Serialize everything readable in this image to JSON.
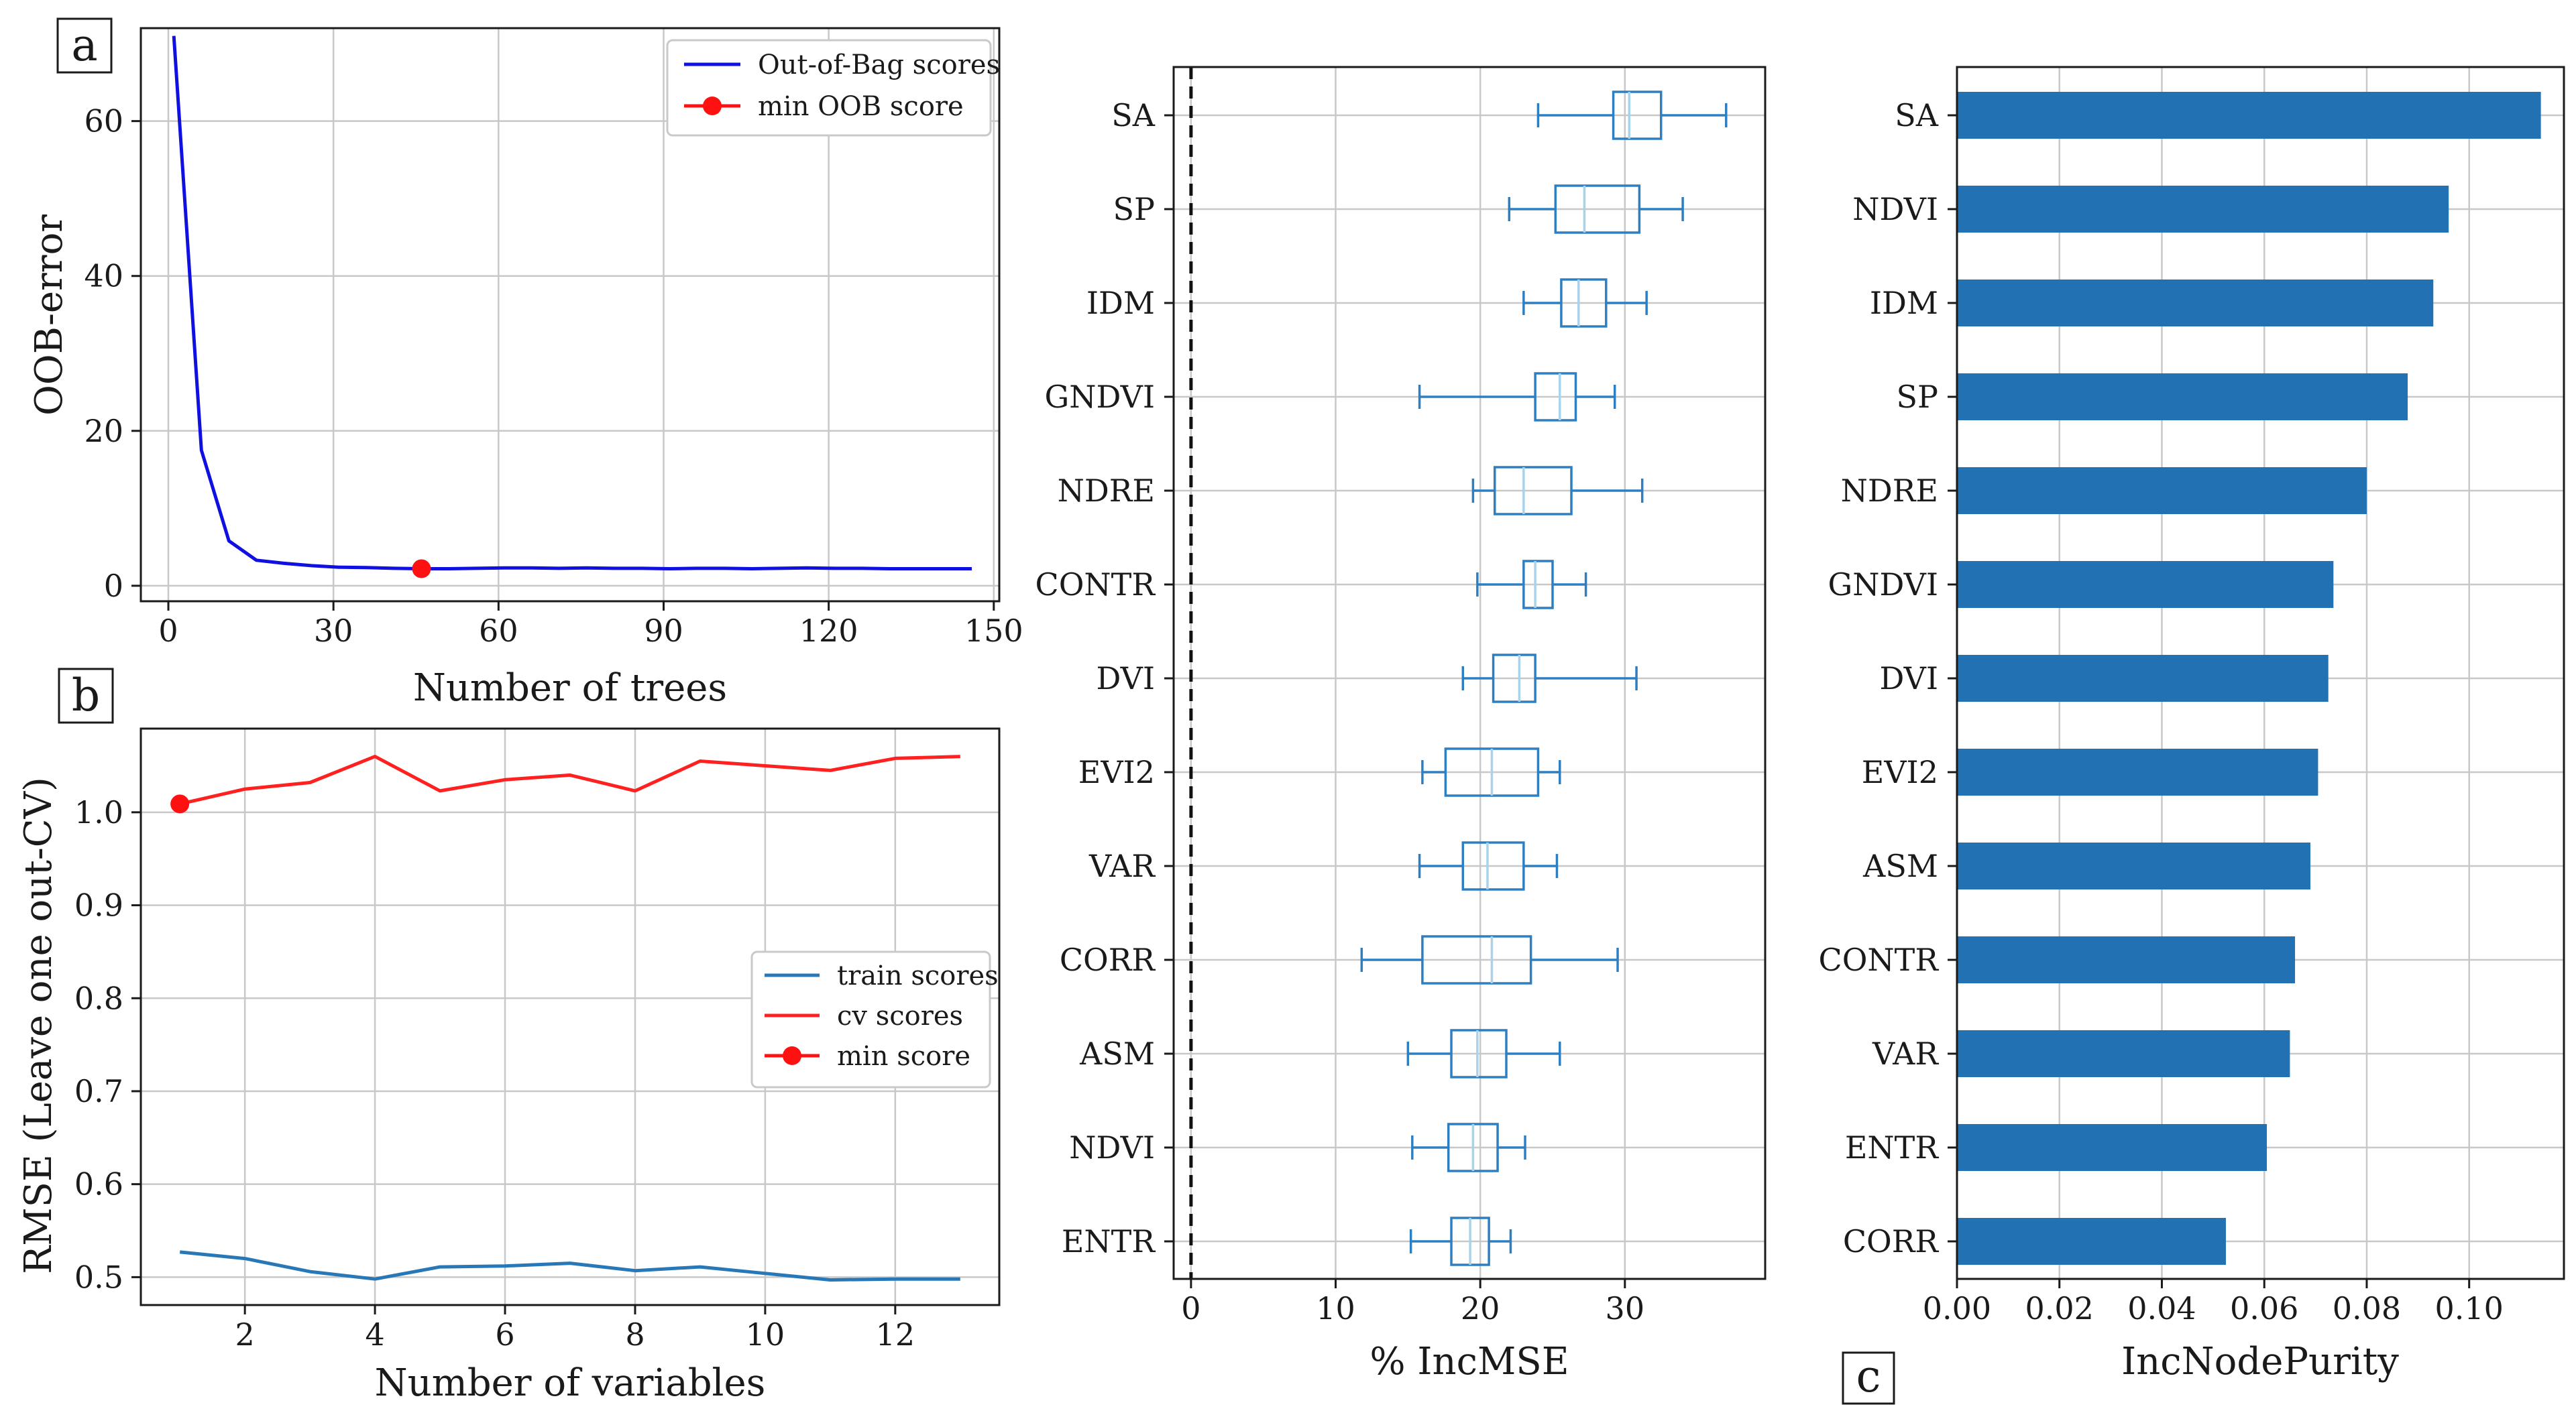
{
  "colors": {
    "oob_line": "#1010e0",
    "min_marker": "#ff1111",
    "cv_line": "#ff2020",
    "train_line": "#2878b8",
    "box": "#2e7fc2",
    "median": "#a9d2ec",
    "bar": "#2271b3",
    "grid": "#c8c8c8"
  },
  "panel_labels": {
    "a": "a",
    "b": "b",
    "c": "c"
  },
  "chart_data": [
    {
      "id": "a",
      "type": "line",
      "title": "",
      "xlabel": "Number of trees",
      "ylabel": "OOB-error",
      "xlim": [
        -5,
        151
      ],
      "ylim": [
        -2,
        72
      ],
      "xticks": [
        0,
        30,
        60,
        90,
        120,
        150
      ],
      "yticks": [
        0,
        20,
        40,
        60
      ],
      "grid": true,
      "legend_position": "top-right",
      "series": [
        {
          "name": "Out-of-Bag scores",
          "x": [
            1,
            6,
            11,
            16,
            21,
            26,
            31,
            36,
            41,
            46,
            51,
            56,
            61,
            66,
            71,
            76,
            81,
            86,
            91,
            96,
            101,
            106,
            111,
            116,
            121,
            126,
            131,
            136,
            141,
            146
          ],
          "y": [
            71,
            17.5,
            5.8,
            3.3,
            2.9,
            2.6,
            2.4,
            2.35,
            2.25,
            2.2,
            2.2,
            2.25,
            2.3,
            2.3,
            2.25,
            2.3,
            2.25,
            2.25,
            2.2,
            2.25,
            2.25,
            2.2,
            2.25,
            2.3,
            2.25,
            2.25,
            2.2,
            2.2,
            2.2,
            2.2
          ]
        }
      ],
      "marker": {
        "name": "min OOB score",
        "x": 46,
        "y": 2.2
      }
    },
    {
      "id": "b",
      "type": "line",
      "title": "",
      "xlabel": "Number of variables",
      "ylabel": "RMSE (Leave one out-CV)",
      "xlim": [
        0.4,
        13.6
      ],
      "ylim": [
        0.47,
        1.09
      ],
      "xticks": [
        2,
        4,
        6,
        8,
        10,
        12
      ],
      "yticks": [
        0.5,
        0.6,
        0.7,
        0.8,
        0.9,
        1.0
      ],
      "ytick_labels": [
        "0.5",
        "0.6",
        "0.7",
        "0.8",
        "0.9",
        "1.0"
      ],
      "grid": true,
      "legend_position": "center-right",
      "series": [
        {
          "name": "train scores",
          "x": [
            1,
            2,
            3,
            4,
            5,
            6,
            7,
            8,
            9,
            10,
            11,
            12,
            13
          ],
          "y": [
            0.527,
            0.52,
            0.506,
            0.498,
            0.511,
            0.512,
            0.515,
            0.507,
            0.511,
            0.504,
            0.497,
            0.498,
            0.498
          ]
        },
        {
          "name": "cv scores",
          "x": [
            1,
            2,
            3,
            4,
            5,
            6,
            7,
            8,
            9,
            10,
            11,
            12,
            13
          ],
          "y": [
            1.009,
            1.025,
            1.032,
            1.06,
            1.023,
            1.035,
            1.04,
            1.023,
            1.055,
            1.05,
            1.045,
            1.058,
            1.06
          ]
        }
      ],
      "marker": {
        "name": "min score",
        "x": 1,
        "y": 1.009
      }
    },
    {
      "id": "box",
      "type": "box",
      "title": "",
      "xlabel": "% IncMSE",
      "ylabel": "",
      "xlim": [
        -1.2,
        39.7
      ],
      "xticks": [
        0,
        10,
        20,
        30
      ],
      "reference_line_x": 0,
      "grid": true,
      "categories": [
        "SA",
        "SP",
        "IDM",
        "GNDVI",
        "NDRE",
        "CONTR",
        "DVI",
        "EVI2",
        "VAR",
        "CORR",
        "ASM",
        "NDVI",
        "ENTR"
      ],
      "boxes": [
        {
          "min": 24.0,
          "q1": 29.2,
          "median": 30.3,
          "q3": 32.5,
          "max": 37.0
        },
        {
          "min": 22.0,
          "q1": 25.2,
          "median": 27.2,
          "q3": 31.0,
          "max": 34.0
        },
        {
          "min": 23.0,
          "q1": 25.6,
          "median": 26.8,
          "q3": 28.7,
          "max": 31.5
        },
        {
          "min": 15.8,
          "q1": 23.8,
          "median": 25.5,
          "q3": 26.6,
          "max": 29.3
        },
        {
          "min": 19.5,
          "q1": 21.0,
          "median": 23.0,
          "q3": 26.3,
          "max": 31.2
        },
        {
          "min": 19.8,
          "q1": 23.0,
          "median": 23.8,
          "q3": 25.0,
          "max": 27.3
        },
        {
          "min": 18.8,
          "q1": 20.9,
          "median": 22.7,
          "q3": 23.8,
          "max": 30.8
        },
        {
          "min": 16.0,
          "q1": 17.6,
          "median": 20.8,
          "q3": 24.0,
          "max": 25.5
        },
        {
          "min": 15.8,
          "q1": 18.8,
          "median": 20.5,
          "q3": 23.0,
          "max": 25.3
        },
        {
          "min": 11.8,
          "q1": 16.0,
          "median": 20.8,
          "q3": 23.5,
          "max": 29.5
        },
        {
          "min": 15.0,
          "q1": 18.0,
          "median": 19.8,
          "q3": 21.8,
          "max": 25.5
        },
        {
          "min": 15.3,
          "q1": 17.8,
          "median": 19.5,
          "q3": 21.2,
          "max": 23.1
        },
        {
          "min": 15.2,
          "q1": 18.0,
          "median": 19.3,
          "q3": 20.6,
          "max": 22.1
        }
      ]
    },
    {
      "id": "c",
      "type": "bar",
      "orientation": "horizontal",
      "title": "",
      "xlabel": "IncNodePurity",
      "ylabel": "",
      "xlim": [
        0,
        0.1185
      ],
      "xticks": [
        0.0,
        0.02,
        0.04,
        0.06,
        0.08,
        0.1
      ],
      "xtick_labels": [
        "0.00",
        "0.02",
        "0.04",
        "0.06",
        "0.08",
        "0.10"
      ],
      "grid": true,
      "categories": [
        "SA",
        "NDVI",
        "IDM",
        "SP",
        "NDRE",
        "GNDVI",
        "DVI",
        "EVI2",
        "ASM",
        "CONTR",
        "VAR",
        "ENTR",
        "CORR"
      ],
      "values": [
        0.114,
        0.096,
        0.093,
        0.088,
        0.08,
        0.0735,
        0.0725,
        0.0705,
        0.069,
        0.066,
        0.065,
        0.0605,
        0.0525
      ]
    }
  ]
}
